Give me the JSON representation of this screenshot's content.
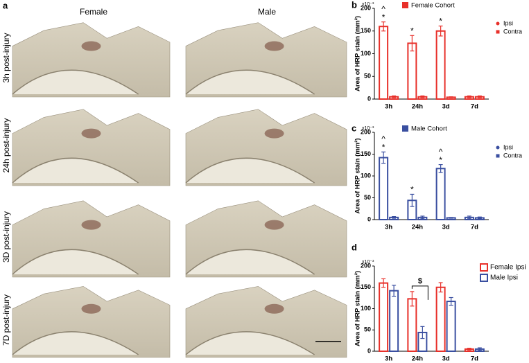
{
  "panel_a": {
    "label": "a",
    "columns": [
      "Female",
      "Male"
    ],
    "rows": [
      "3h post-injury",
      "24h post-injury",
      "3D post-injury",
      "7D post-injury"
    ]
  },
  "chart_data": [
    {
      "type": "bar",
      "panel": "b",
      "legend_title": "Female Cohort",
      "legend_title_color": "#e8302a",
      "y_label": "Area of HRP stain (mm²)",
      "scale_label": "x10⁻³",
      "categories": [
        "3h",
        "24h",
        "3d",
        "7d"
      ],
      "series": [
        {
          "name": "Ipsi",
          "color": "#e8302a",
          "marker": "circle",
          "values": [
            160,
            123,
            150,
            5
          ],
          "errors": [
            10,
            17,
            11,
            2
          ]
        },
        {
          "name": "Contra",
          "color": "#e8302a",
          "marker": "square",
          "values": [
            5,
            5,
            4,
            5
          ],
          "errors": [
            2,
            2,
            1,
            2
          ]
        }
      ],
      "ylim": [
        0,
        200
      ],
      "yticks": [
        0,
        50,
        100,
        150,
        200
      ],
      "annotations": [
        {
          "text": "*",
          "x": "3h"
        },
        {
          "text": "^",
          "x": "3h"
        },
        {
          "text": "*",
          "x": "24h"
        },
        {
          "text": "*",
          "x": "3d"
        }
      ]
    },
    {
      "type": "bar",
      "panel": "c",
      "legend_title": "Male Cohort",
      "legend_title_color": "#3a4fa0",
      "y_label": "Area of HRP stain (mm²)",
      "scale_label": "x10⁻³",
      "categories": [
        "3h",
        "24h",
        "3d",
        "7d"
      ],
      "series": [
        {
          "name": "Ipsi",
          "color": "#3a4fa0",
          "marker": "circle",
          "values": [
            142,
            44,
            117,
            5
          ],
          "errors": [
            13,
            14,
            9,
            3
          ]
        },
        {
          "name": "Contra",
          "color": "#3a4fa0",
          "marker": "square",
          "values": [
            5,
            5,
            4,
            4
          ],
          "errors": [
            2,
            3,
            1,
            2
          ]
        }
      ],
      "ylim": [
        0,
        200
      ],
      "yticks": [
        0,
        50,
        100,
        150,
        200
      ],
      "annotations": [
        {
          "text": "*",
          "x": "3h"
        },
        {
          "text": "^",
          "x": "3h"
        },
        {
          "text": "*",
          "x": "24h"
        },
        {
          "text": "*",
          "x": "3d"
        },
        {
          "text": "^",
          "x": "3d"
        }
      ]
    },
    {
      "type": "bar",
      "panel": "d",
      "y_label": "Area of HRP stain (mm²)",
      "scale_label": "x10⁻³",
      "categories": [
        "3h",
        "24h",
        "3d",
        "7d"
      ],
      "series": [
        {
          "name": "Female Ipsi",
          "color": "#e8302a",
          "marker": "bar",
          "values": [
            160,
            123,
            150,
            5
          ],
          "errors": [
            10,
            17,
            11,
            2
          ]
        },
        {
          "name": "Male Ipsi",
          "color": "#3a4fa0",
          "marker": "bar",
          "values": [
            142,
            44,
            117,
            5
          ],
          "errors": [
            13,
            14,
            9,
            3
          ]
        }
      ],
      "ylim": [
        0,
        200
      ],
      "yticks": [
        0,
        50,
        100,
        150,
        200
      ],
      "annotations": [
        {
          "text": "$",
          "x": "24h",
          "bracket": true
        }
      ]
    }
  ]
}
